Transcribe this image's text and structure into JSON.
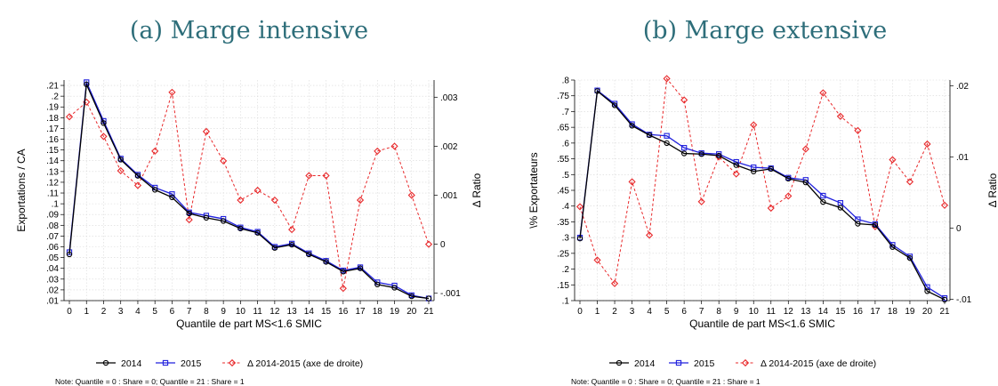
{
  "chart_data": [
    {
      "type": "line",
      "title": "(a) Marge intensive",
      "xlabel": "Quantile de part MS<1.6 SMIC",
      "ylabel": "Exportations / CA",
      "y2label": "Δ Ratio",
      "x": [
        0,
        1,
        2,
        3,
        4,
        5,
        6,
        7,
        8,
        9,
        10,
        11,
        12,
        13,
        14,
        15,
        16,
        17,
        18,
        19,
        20,
        21
      ],
      "xticks": [
        "0",
        "1",
        "2",
        "3",
        "4",
        "5",
        "6",
        "7",
        "8",
        "9",
        "10",
        "11",
        "12",
        "13",
        "14",
        "15",
        "16",
        "17",
        "18",
        "19",
        "20",
        "21"
      ],
      "ylim": [
        0.01,
        0.215
      ],
      "yticks": [
        ".01",
        ".02",
        ".03",
        ".04",
        ".05",
        ".06",
        ".07",
        ".08",
        ".09",
        ".1",
        ".11",
        ".12",
        ".13",
        ".14",
        ".15",
        ".16",
        ".17",
        ".18",
        ".19",
        ".2",
        ".21"
      ],
      "y2lim": [
        -0.00115,
        0.00335
      ],
      "y2ticks": [
        "-.001",
        "0",
        ".001",
        ".002",
        ".003"
      ],
      "series": [
        {
          "name": "2014",
          "axis": "left",
          "color": "#000000",
          "marker": "circle",
          "values": [
            0.053,
            0.211,
            0.175,
            0.141,
            0.126,
            0.113,
            0.106,
            0.091,
            0.087,
            0.084,
            0.077,
            0.073,
            0.059,
            0.062,
            0.053,
            0.046,
            0.037,
            0.04,
            0.025,
            0.022,
            0.014,
            0.012
          ]
        },
        {
          "name": "2015",
          "axis": "left",
          "color": "#2020dd",
          "marker": "square",
          "values": [
            0.055,
            0.213,
            0.177,
            0.142,
            0.127,
            0.115,
            0.109,
            0.092,
            0.089,
            0.086,
            0.078,
            0.074,
            0.06,
            0.063,
            0.054,
            0.047,
            0.038,
            0.041,
            0.027,
            0.024,
            0.015,
            0.012
          ]
        },
        {
          "name": "Δ 2014-2015 (axe de droite)",
          "axis": "right",
          "color": "#e8282a",
          "marker": "diamond",
          "values": [
            0.0026,
            0.0029,
            0.0022,
            0.0015,
            0.0012,
            0.0019,
            0.0031,
            0.0005,
            0.0023,
            0.0017,
            0.0009,
            0.0011,
            0.0009,
            0.0003,
            0.0014,
            0.0014,
            -0.0009,
            0.0009,
            0.0019,
            0.002,
            0.001,
            -0.0
          ]
        }
      ],
      "legend": "bottom",
      "note": "Note: Quantile = 0 : Share = 0; Quantile = 21 : Share = 1"
    },
    {
      "type": "line",
      "title": "(b) Marge extensive",
      "xlabel": "Quantile de part MS<1.6 SMIC",
      "ylabel": "\\% Exportateurs",
      "y2label": "Δ Ratio",
      "x": [
        0,
        1,
        2,
        3,
        4,
        5,
        6,
        7,
        8,
        9,
        10,
        11,
        12,
        13,
        14,
        15,
        16,
        17,
        18,
        19,
        20,
        21
      ],
      "xticks": [
        "0",
        "1",
        "2",
        "3",
        "4",
        "5",
        "6",
        "7",
        "8",
        "9",
        "10",
        "11",
        "12",
        "13",
        "14",
        "15",
        "16",
        "17",
        "18",
        "19",
        "20",
        "21"
      ],
      "ylim": [
        0.1,
        0.8
      ],
      "yticks": [
        ".1",
        ".15",
        ".2",
        ".25",
        ".3",
        ".35",
        ".4",
        ".45",
        ".5",
        ".55",
        ".6",
        ".65",
        ".7",
        ".75",
        ".8"
      ],
      "y2lim": [
        -0.0102,
        0.0208
      ],
      "y2ticks": [
        "-.01",
        "0",
        ".01",
        ".02"
      ],
      "series": [
        {
          "name": "2014",
          "axis": "left",
          "color": "#000000",
          "marker": "circle",
          "values": [
            0.297,
            0.765,
            0.72,
            0.655,
            0.625,
            0.6,
            0.567,
            0.565,
            0.56,
            0.53,
            0.51,
            0.518,
            0.487,
            0.475,
            0.413,
            0.395,
            0.344,
            0.34,
            0.27,
            0.235,
            0.13,
            0.103
          ]
        },
        {
          "name": "2015",
          "axis": "left",
          "color": "#2020dd",
          "marker": "square",
          "values": [
            0.3,
            0.767,
            0.725,
            0.66,
            0.627,
            0.623,
            0.585,
            0.568,
            0.565,
            0.54,
            0.523,
            0.52,
            0.49,
            0.483,
            0.433,
            0.41,
            0.358,
            0.343,
            0.277,
            0.24,
            0.143,
            0.108
          ]
        },
        {
          "name": "Δ 2014-2015 (axe de droite)",
          "axis": "right",
          "color": "#e8282a",
          "marker": "diamond",
          "values": [
            0.003,
            -0.0045,
            -0.0078,
            0.0065,
            -0.001,
            0.021,
            0.018,
            0.0037,
            0.01,
            0.0076,
            0.0145,
            0.0028,
            0.0045,
            0.0111,
            0.019,
            0.0157,
            0.0137,
            0.0002,
            0.0096,
            0.0065,
            0.0118,
            0.0032
          ]
        }
      ],
      "legend": "bottom",
      "note": "Note: Quantile = 0 : Share = 0; Quantile = 21 : Share = 1"
    }
  ]
}
